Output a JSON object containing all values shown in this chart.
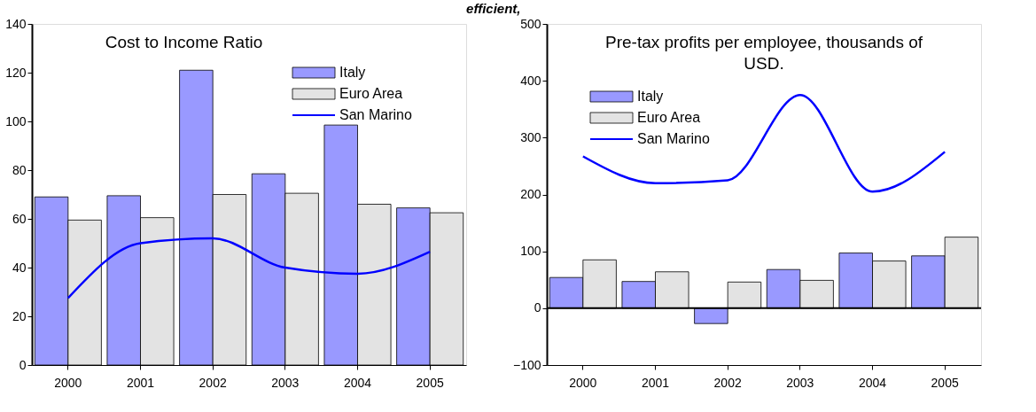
{
  "chart_data": [
    {
      "type": "bar",
      "title": "Cost to Income Ratio",
      "annotations": [
        "efficient,"
      ],
      "categories": [
        "2000",
        "2001",
        "2002",
        "2003",
        "2004",
        "2005"
      ],
      "series": [
        {
          "name": "Italy",
          "color": "#9999ff",
          "values": [
            69,
            69.5,
            121,
            78.5,
            98.5,
            64.5
          ]
        },
        {
          "name": "Euro Area",
          "color": "#e3e3e3",
          "values": [
            59.5,
            60.5,
            70,
            70.5,
            66,
            62.5
          ]
        },
        {
          "name": "San Marino",
          "type": "line",
          "color": "#0000ff",
          "values": [
            27.5,
            50,
            52,
            40,
            37.5,
            46.5
          ]
        }
      ],
      "ylim": [
        0,
        140
      ],
      "yticks": [
        0,
        20,
        40,
        60,
        80,
        100,
        120,
        140
      ],
      "grid": false,
      "legend": "top right"
    },
    {
      "type": "bar",
      "title": "Pre-tax profits per employee, thousands of USD.",
      "categories": [
        "2000",
        "2001",
        "2002",
        "2003",
        "2004",
        "2005"
      ],
      "series": [
        {
          "name": "Italy",
          "color": "#9999ff",
          "values": [
            54,
            47,
            -27,
            68,
            97,
            92
          ]
        },
        {
          "name": "Euro Area",
          "color": "#e3e3e3",
          "values": [
            85,
            64,
            46,
            49,
            83,
            125
          ]
        },
        {
          "name": "San Marino",
          "type": "line",
          "color": "#0000ff",
          "values": [
            267,
            220,
            225,
            375,
            205,
            275
          ]
        }
      ],
      "ylim": [
        -100,
        500
      ],
      "yticks": [
        -100,
        0,
        100,
        200,
        300,
        400,
        500
      ],
      "grid": false,
      "legend": "top left",
      "ref_lines": [
        {
          "axis": "y",
          "value": 0,
          "color": "#000000"
        }
      ]
    }
  ]
}
